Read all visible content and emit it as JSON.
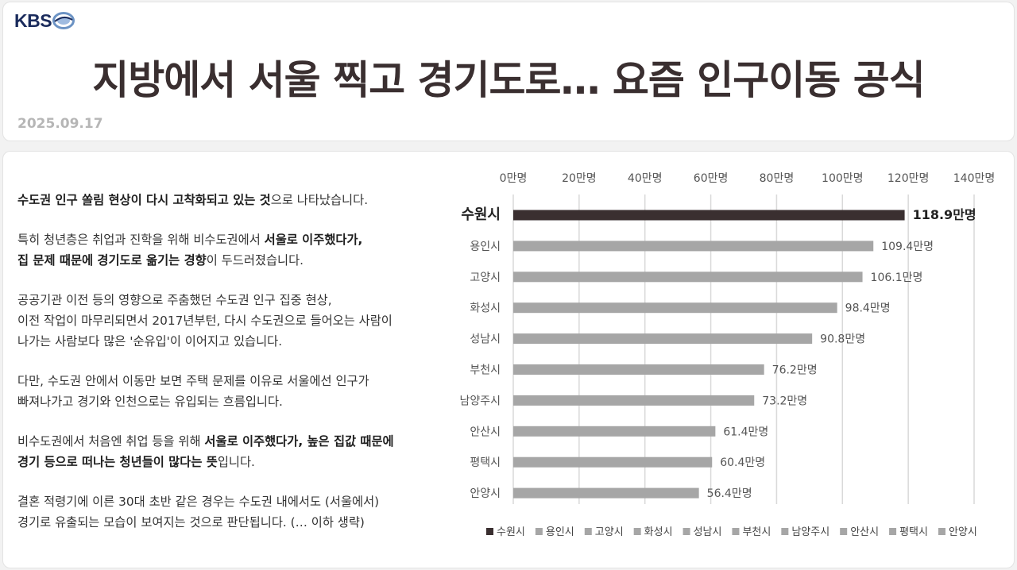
{
  "header": {
    "logo_text": "KBS",
    "headline": "지방에서 서울 찍고 경기도로… 요즘 인구이동 공식",
    "date": "2025.09.17"
  },
  "article": {
    "paragraphs": [
      [
        [
          {
            "t": "수도권 인구 쏠림 현상이 다시 고착화되고 있는 것",
            "b": true
          },
          {
            "t": "으로 나타났습니다."
          }
        ]
      ],
      [
        [
          {
            "t": "특히 청년층은 취업과 진학을 위해 비수도권에서 "
          },
          {
            "t": "서울로 이주했다가,",
            "b": true
          }
        ],
        [
          {
            "t": "집 문제 때문에 경기도로 옮기는 경향",
            "b": true
          },
          {
            "t": "이 두드러졌습니다."
          }
        ]
      ],
      [
        [
          {
            "t": "공공기관 이전 등의 영향으로 주춤했던 수도권 인구 집중 현상,"
          }
        ],
        [
          {
            "t": "이전 작업이 마무리되면서 2017년부턴, 다시 수도권으로 들어오는 사람이"
          }
        ],
        [
          {
            "t": "나가는 사람보다 많은 '순유입'이 이어지고 있습니다."
          }
        ]
      ],
      [
        [
          {
            "t": "다만, 수도권 안에서 이동만 보면 주택 문제를 이유로 서울에선 인구가"
          }
        ],
        [
          {
            "t": "빠져나가고 경기와 인천으로는 유입되는 흐름입니다."
          }
        ]
      ],
      [
        [
          {
            "t": "비수도권에서 처음엔 취업 등을 위해 "
          },
          {
            "t": "서울로 이주했다가, 높은 집값 때문에",
            "b": true
          }
        ],
        [
          {
            "t": "경기 등으로 떠나는 청년들이 많다는 뜻",
            "b": true
          },
          {
            "t": "입니다."
          }
        ]
      ],
      [
        [
          {
            "t": "결혼 적령기에 이른 30대 초반 같은 경우는 수도권 내에서도 (서울에서)"
          }
        ],
        [
          {
            "t": "경기로 유출되는 모습이 보여지는 것으로 판단됩니다. (… 이하 생략)"
          }
        ]
      ]
    ]
  },
  "chart_data": {
    "type": "bar",
    "orientation": "horizontal",
    "categories": [
      "수원시",
      "용인시",
      "고양시",
      "화성시",
      "성남시",
      "부천시",
      "남양주시",
      "안산시",
      "평택시",
      "안양시"
    ],
    "values": [
      118.9,
      109.4,
      106.1,
      98.4,
      90.8,
      76.2,
      73.2,
      61.4,
      60.4,
      56.4
    ],
    "value_labels": [
      "118.9만명",
      "109.4만명",
      "106.1만명",
      "98.4만명",
      "90.8만명",
      "76.2만명",
      "73.2만명",
      "61.4만명",
      "60.4만명",
      "56.4만명"
    ],
    "x_ticks": [
      0,
      20,
      40,
      60,
      80,
      100,
      120,
      140
    ],
    "x_tick_labels": [
      "0만명",
      "20만명",
      "40만명",
      "60만명",
      "80만명",
      "100만명",
      "120만명",
      "140만명"
    ],
    "xlim": [
      0,
      140
    ],
    "axis_position": "top",
    "grid": true,
    "legend": "bottom",
    "highlight_index": 0,
    "colors": {
      "highlight": "#3a2f30",
      "default": "#a6a6a6",
      "grid": "#d9d9d9"
    }
  }
}
